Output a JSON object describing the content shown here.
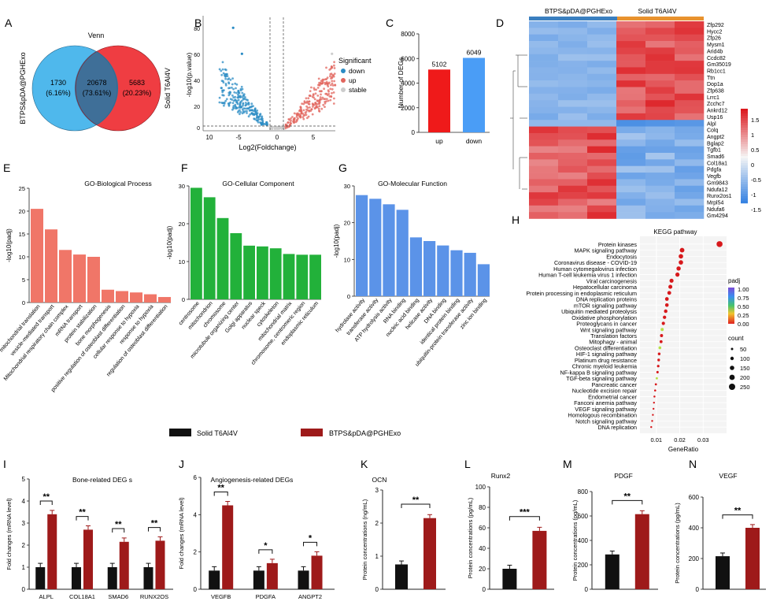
{
  "panels": {
    "A": {
      "letter": "A",
      "title": "Venn",
      "left_label": "BTPS&pDA@PGHExo",
      "right_label": "Solid T6Al4V",
      "left_only": "1730",
      "left_only_pct": "(6.16%)",
      "both": "20678",
      "both_pct": "(73.61%)",
      "right_only": "5683",
      "right_only_pct": "(20.23%)",
      "left_color": "#4fb8ec",
      "right_color": "#ef3d42",
      "overlap_color": "#3f6f98"
    },
    "B": {
      "letter": "B",
      "xlabel": "Log2(Foldchange)",
      "ylabel": "-log10(p.value)",
      "xticks": [
        "10",
        "-5",
        "0",
        "5"
      ],
      "yticks": [
        "0",
        "20",
        "40",
        "60",
        "80"
      ],
      "legend_title": "Significant",
      "legend": [
        {
          "label": "down",
          "color": "#2b8cc4"
        },
        {
          "label": "up",
          "color": "#e1655d"
        },
        {
          "label": "stable",
          "color": "#cccccc"
        }
      ]
    },
    "C": {
      "letter": "C",
      "ylabel": "Number of DEGs",
      "yticks": [
        "0",
        "2000",
        "4000",
        "6000",
        "8000"
      ],
      "chart_data": {
        "type": "bar",
        "categories": [
          "up",
          "down"
        ],
        "values": [
          5102,
          6049
        ],
        "value_labels": [
          "5102",
          "6049"
        ],
        "ylim": [
          0,
          8000
        ],
        "colors": [
          "#ef1a1a",
          "#4a9df6"
        ]
      }
    },
    "D": {
      "letter": "D",
      "group1": "BTPS&pDA@PGHExo",
      "group2": "Solid T6Al4V",
      "group1_color": "#3a7fc0",
      "group2_color": "#e8922e",
      "genes": [
        "Zfp292",
        "Hycc2",
        "Zfp26",
        "Mysm1",
        "Arid4b",
        "Ccdc82",
        "Gm35019",
        "Rb1cc1",
        "Ttn",
        "Dop1a",
        "Zfp638",
        "Lrrc1",
        "Zcchc7",
        "Ankrd12",
        "Usp16",
        "Alpl",
        "Colq",
        "Angpt2",
        "Bglap2",
        "Tgfb1",
        "Smad6",
        "Col18a1",
        "Pdgfa",
        "Vegfb",
        "Gm9843",
        "Ndufa12",
        "Runx2os1",
        "Mrpl54",
        "Ndufa6",
        "Gm4294"
      ],
      "scale_ticks": [
        "1.5",
        "1",
        "0.5",
        "0",
        "-0.5",
        "-1",
        "-1.5"
      ]
    },
    "E": {
      "letter": "E",
      "title": "GO-Biological Process",
      "ylabel": "-log10(padj)",
      "yticks": [
        "0",
        "5",
        "10",
        "15",
        "20",
        "25"
      ],
      "chart_data": {
        "type": "bar",
        "ylim": [
          0,
          25
        ],
        "color": "#f07668",
        "categories": [
          "mitochondrial translation",
          "vesicle-mediated transport",
          "Mitochondrial respiratory chain complex",
          "mRNA transport",
          "protein stabilization",
          "bone morphogenesis",
          "positive regulation of osteoblast differentiation",
          "cellular response to hypoxia",
          "response to hypoxia",
          "regulation of osteoblast differentiation"
        ],
        "values": [
          20.5,
          16,
          11.5,
          10.5,
          10,
          2.8,
          2.5,
          2.2,
          1.8,
          1.2
        ]
      }
    },
    "F": {
      "letter": "F",
      "title": "GO-Cellular Component",
      "ylabel": "-log10(padj)",
      "yticks": [
        "0",
        "10",
        "20",
        "30"
      ],
      "chart_data": {
        "type": "bar",
        "ylim": [
          0,
          30
        ],
        "color": "#22b13a",
        "categories": [
          "centrosome",
          "mitochondrion",
          "chromosome",
          "microtubule organizing center",
          "Golgi apparatus",
          "nuclear speck",
          "cytoskeleton",
          "mitochondrial matrix",
          "chromosome, centromeric region",
          "endoplasmic reticulum"
        ],
        "values": [
          29.5,
          27,
          21.5,
          17.5,
          14.2,
          14,
          13.5,
          12,
          11.8,
          11.8
        ]
      }
    },
    "G": {
      "letter": "G",
      "title": "GO-Molecular Function",
      "ylabel": "-log10(padj)",
      "yticks": [
        "0",
        "10",
        "20",
        "30"
      ],
      "chart_data": {
        "type": "bar",
        "ylim": [
          0,
          30
        ],
        "color": "#5b93e8",
        "categories": [
          "hydrolase activity",
          "transferase activity",
          "ATP hydrolysis activity",
          "RNA binding",
          "nucleic acid binding",
          "helicase activity",
          "DNA binding",
          "identical protein binding",
          "ubiquitin-protein transferase activity",
          "zinc ion binding"
        ],
        "values": [
          27.5,
          26.5,
          25,
          23.5,
          16,
          15,
          13.8,
          12.5,
          11.8,
          8.7
        ]
      }
    },
    "H": {
      "letter": "H",
      "title": "KEGG pathway",
      "xlabel": "GeneRatio",
      "xticks": [
        "0.01",
        "0.02",
        "0.03"
      ],
      "legend_padj": "padj",
      "padj_ticks": [
        "1.00",
        "0.75",
        "0.50",
        "0.25",
        "0.00"
      ],
      "legend_count": "count",
      "count_ticks": [
        "50",
        "100",
        "150",
        "200",
        "250"
      ],
      "chart_data": {
        "type": "scatter",
        "xlim": [
          0.003,
          0.04
        ],
        "pathways": [
          "Protein kinases",
          "MAPK signaling pathway",
          "Endocytosis",
          "Coronavirus disease - COVID-19",
          "Human cytomegalovirus infection",
          "Human T-cell leukemia virus 1 infection",
          "Viral carcinogenesis",
          "Hepatocellular carcinoma",
          "Protein processing in endoplasmic reticulum",
          "DNA replication proteins",
          "mTOR signaling pathway",
          "Ubiquitin mediated proteolysis",
          "Oxidative phosphorylation",
          "Proteoglycans in cancer",
          "Wnt signaling pathway",
          "Translation factors",
          "Mitophagy - animal",
          "Osteoclast differentiation",
          "HIF-1 signaling pathway",
          "Platinum drug resistance",
          "Chronic myeloid leukemia",
          "NF-kappa B signaling pathway",
          "TGF-beta signaling pathway",
          "Pancreatic cancer",
          "Nucleotide excision repair",
          "Endometrial cancer",
          "Fanconi anemia pathway",
          "VEGF signaling pathway",
          "Homologous recombination",
          "Notch signaling pathway",
          "DNA replication"
        ],
        "x": [
          0.037,
          0.021,
          0.0205,
          0.0205,
          0.0195,
          0.019,
          0.0165,
          0.016,
          0.0155,
          0.0145,
          0.0145,
          0.014,
          0.0135,
          0.013,
          0.0125,
          0.0122,
          0.012,
          0.0115,
          0.0112,
          0.011,
          0.0108,
          0.0105,
          0.0102,
          0.0098,
          0.0095,
          0.0092,
          0.009,
          0.0088,
          0.0085,
          0.0082,
          0.0078
        ],
        "padj_high": [
          false,
          false,
          false,
          false,
          false,
          false,
          false,
          false,
          false,
          false,
          false,
          false,
          false,
          false,
          true,
          false,
          false,
          true,
          false,
          false,
          false,
          false,
          true,
          false,
          false,
          false,
          false,
          false,
          false,
          false,
          false
        ]
      }
    },
    "legend": {
      "solid_label": "Solid T6Al4V",
      "exo_label": "BTPS&pDA@PGHExo",
      "solid_color": "#111111",
      "exo_color": "#9e1a1a"
    },
    "I": {
      "letter": "I",
      "title": "Bone-related DEG s",
      "ylabel": "Fold changes (mRNA level)",
      "yticks": [
        "0",
        "1",
        "2",
        "3",
        "4",
        "5"
      ],
      "chart_data": {
        "type": "bar",
        "ylim": [
          0,
          5
        ],
        "categories": [
          "ALPL",
          "COL18A1",
          "SMAD6",
          "RUNX2OS"
        ],
        "series": [
          {
            "name": "Solid T6Al4V",
            "values": [
              1,
              1,
              1,
              1
            ]
          },
          {
            "name": "BTPS&pDA@PGHExo",
            "values": [
              3.4,
              2.7,
              2.15,
              2.2
            ]
          }
        ],
        "sig": [
          "**",
          "**",
          "**",
          "**"
        ]
      }
    },
    "J": {
      "letter": "J",
      "title": "Angiogenesis-related DEGs",
      "ylabel": "Fold changes (mRNA level)",
      "yticks": [
        "0",
        "2",
        "4",
        "6"
      ],
      "chart_data": {
        "type": "bar",
        "ylim": [
          0,
          6
        ],
        "categories": [
          "VEGFB",
          "PDGFA",
          "ANGPT2"
        ],
        "series": [
          {
            "name": "Solid T6Al4V",
            "values": [
              1,
              1,
              1
            ]
          },
          {
            "name": "BTPS&pDA@PGHExo",
            "values": [
              4.5,
              1.4,
              1.8
            ]
          }
        ],
        "sig": [
          "**",
          "*",
          "*"
        ]
      }
    },
    "K": {
      "letter": "K",
      "title": "OCN",
      "ylabel": "Protein concentrations (ng/mL)",
      "yticks": [
        "0",
        "1",
        "2",
        "3"
      ],
      "chart_data": {
        "type": "bar",
        "ylim": [
          0,
          3
        ],
        "values": [
          0.75,
          2.15
        ],
        "sig": "**"
      }
    },
    "L": {
      "letter": "L",
      "title": "Runx2",
      "ylabel": "Protein concentrations (pg/mL)",
      "yticks": [
        "0",
        "20",
        "40",
        "60",
        "80",
        "100"
      ],
      "chart_data": {
        "type": "bar",
        "ylim": [
          0,
          100
        ],
        "values": [
          20,
          57
        ],
        "sig": "***"
      }
    },
    "M": {
      "letter": "M",
      "title": "PDGF",
      "ylabel": "Protein concentrations (pg/mL)",
      "yticks": [
        "0",
        "200",
        "400",
        "600",
        "800"
      ],
      "chart_data": {
        "type": "bar",
        "ylim": [
          0,
          800
        ],
        "values": [
          285,
          615
        ],
        "sig": "**"
      }
    },
    "N": {
      "letter": "N",
      "title": "VEGF",
      "ylabel": "Protein concentrations (pg/mL)",
      "yticks": [
        "0",
        "200",
        "400",
        "600"
      ],
      "chart_data": {
        "type": "bar",
        "ylim": [
          0,
          600
        ],
        "values": [
          215,
          400
        ],
        "sig": "**"
      }
    }
  }
}
